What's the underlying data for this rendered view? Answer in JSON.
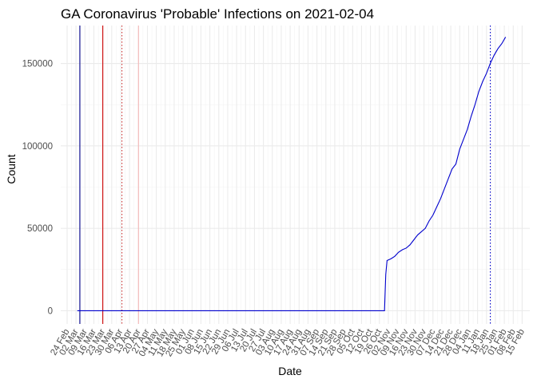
{
  "chart_data": {
    "type": "line",
    "title": "GA Coronavirus 'Probable' Infections on 2021-02-04",
    "xlabel": "Date",
    "ylabel": "Count",
    "x_axis_type": "date",
    "xlim": [
      "2020-02-19",
      "2021-02-21"
    ],
    "ylim": [
      -8000,
      173000
    ],
    "x_ticks": [
      "2020-02-24",
      "2020-03-02",
      "2020-03-09",
      "2020-03-16",
      "2020-03-23",
      "2020-03-30",
      "2020-04-06",
      "2020-04-13",
      "2020-04-20",
      "2020-04-27",
      "2020-05-04",
      "2020-05-11",
      "2020-05-18",
      "2020-05-25",
      "2020-06-01",
      "2020-06-08",
      "2020-06-15",
      "2020-06-22",
      "2020-06-29",
      "2020-07-06",
      "2020-07-13",
      "2020-07-20",
      "2020-07-27",
      "2020-08-03",
      "2020-08-10",
      "2020-08-17",
      "2020-08-24",
      "2020-08-31",
      "2020-09-07",
      "2020-09-14",
      "2020-09-21",
      "2020-09-28",
      "2020-10-05",
      "2020-10-12",
      "2020-10-19",
      "2020-10-26",
      "2020-11-02",
      "2020-11-09",
      "2020-11-16",
      "2020-11-23",
      "2020-11-30",
      "2020-12-07",
      "2020-12-14",
      "2020-12-21",
      "2020-12-28",
      "2021-01-04",
      "2021-01-11",
      "2021-01-18",
      "2021-01-25",
      "2021-02-01",
      "2021-02-08",
      "2021-02-15"
    ],
    "x_tick_labels": [
      "24 Feb",
      "02 Mar",
      "09 Mar",
      "16 Mar",
      "23 Mar",
      "30 Mar",
      "06 Apr",
      "13 Apr",
      "20 Apr",
      "27 Apr",
      "04 May",
      "11 May",
      "18 May",
      "25 May",
      "01 Jun",
      "08 Jun",
      "15 Jun",
      "22 Jun",
      "29 Jun",
      "06 Jul",
      "13 Jul",
      "20 Jul",
      "27 Jul",
      "03 Aug",
      "10 Aug",
      "17 Aug",
      "24 Aug",
      "31 Aug",
      "07 Sep",
      "14 Sep",
      "21 Sep",
      "28 Sep",
      "05 Oct",
      "12 Oct",
      "19 Oct",
      "26 Oct",
      "02 Nov",
      "09 Nov",
      "16 Nov",
      "23 Nov",
      "30 Nov",
      "07 Dec",
      "14 Dec",
      "21 Dec",
      "28 Dec",
      "04 Jan",
      "11 Jan",
      "18 Jan",
      "25 Jan",
      "01 Feb",
      "08 Feb",
      "15 Feb"
    ],
    "y_ticks": [
      0,
      50000,
      100000,
      150000
    ],
    "y_tick_labels": [
      "0",
      "50000",
      "100000",
      "150000"
    ],
    "grid": true,
    "legend": "none",
    "series": [
      {
        "color": "#0000cd",
        "points": [
          [
            "2020-03-03",
            0
          ],
          [
            "2020-10-30",
            0
          ],
          [
            "2020-10-31",
            22000
          ],
          [
            "2020-11-01",
            30500
          ],
          [
            "2020-11-04",
            31500
          ],
          [
            "2020-11-07",
            33000
          ],
          [
            "2020-11-10",
            35500
          ],
          [
            "2020-11-13",
            37000
          ],
          [
            "2020-11-16",
            38000
          ],
          [
            "2020-11-19",
            40000
          ],
          [
            "2020-11-22",
            43000
          ],
          [
            "2020-11-25",
            46000
          ],
          [
            "2020-11-28",
            48000
          ],
          [
            "2020-12-01",
            50000
          ],
          [
            "2020-12-04",
            54500
          ],
          [
            "2020-12-07",
            58000
          ],
          [
            "2020-12-10",
            63000
          ],
          [
            "2020-12-13",
            68000
          ],
          [
            "2020-12-16",
            74000
          ],
          [
            "2020-12-19",
            80000
          ],
          [
            "2020-12-22",
            86000
          ],
          [
            "2020-12-25",
            89000
          ],
          [
            "2020-12-28",
            98000
          ],
          [
            "2020-12-31",
            104000
          ],
          [
            "2021-01-03",
            110000
          ],
          [
            "2021-01-06",
            118000
          ],
          [
            "2021-01-09",
            125000
          ],
          [
            "2021-01-12",
            133000
          ],
          [
            "2021-01-15",
            139000
          ],
          [
            "2021-01-18",
            144000
          ],
          [
            "2021-01-21",
            150000
          ],
          [
            "2021-01-24",
            155000
          ],
          [
            "2021-01-27",
            159000
          ],
          [
            "2021-01-30",
            162000
          ],
          [
            "2021-02-02",
            166000
          ]
        ]
      }
    ],
    "vertical_lines": [
      {
        "x": "2020-03-05",
        "color": "#00008b",
        "style": "solid"
      },
      {
        "x": "2020-03-23",
        "color": "#cc0000",
        "style": "solid"
      },
      {
        "x": "2020-04-07",
        "color": "#cc3333",
        "style": "dotted"
      },
      {
        "x": "2020-04-20",
        "color": "#f4b8b8",
        "style": "solid"
      },
      {
        "x": "2021-01-21",
        "color": "#0000cd",
        "style": "dotted"
      }
    ]
  }
}
